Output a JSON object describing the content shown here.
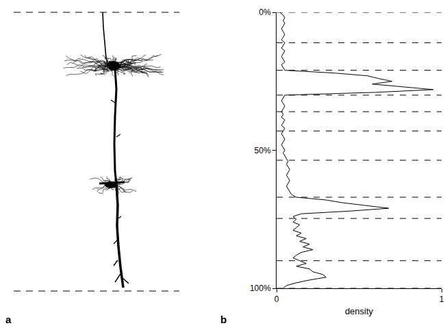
{
  "panel_labels": [
    "a",
    "b"
  ],
  "chart_data": {
    "type": "line",
    "x_label": "density",
    "xlim": [
      0,
      1
    ],
    "xticks": [
      0,
      1
    ],
    "ylim": [
      100,
      0
    ],
    "yticks": [
      {
        "value": 0,
        "label": "0%"
      },
      {
        "value": 50,
        "label": "50%"
      },
      {
        "value": 100,
        "label": "100%"
      }
    ],
    "grid": false,
    "color": "#000000",
    "layer_boundaries": [
      0,
      11,
      21,
      30,
      36,
      43,
      53.6,
      67,
      74.7,
      90,
      100
    ],
    "depth": [
      0,
      1,
      2,
      3,
      4,
      5,
      6,
      7,
      8,
      9,
      10,
      11,
      12,
      13,
      14,
      15,
      16,
      17,
      18,
      19,
      20,
      21,
      22,
      23,
      24,
      25,
      26,
      27,
      28,
      29,
      30,
      31,
      32,
      33,
      34,
      35,
      36,
      37,
      38,
      39,
      40,
      41,
      42,
      43,
      44,
      45,
      46,
      47,
      48,
      49,
      50,
      51,
      52,
      53,
      54,
      55,
      56,
      57,
      58,
      59,
      60,
      61,
      62,
      63,
      64,
      65,
      66,
      67,
      68,
      69,
      70,
      71,
      72,
      73,
      74,
      75,
      76,
      77,
      78,
      79,
      80,
      81,
      82,
      83,
      84,
      85,
      86,
      87,
      88,
      89,
      90,
      91,
      92,
      93,
      94,
      95,
      96,
      97,
      98,
      99,
      100
    ],
    "density": [
      0.02,
      0.04,
      0.05,
      0.04,
      0.05,
      0.04,
      0.03,
      0.04,
      0.05,
      0.04,
      0.03,
      0.05,
      0.04,
      0.03,
      0.05,
      0.04,
      0.03,
      0.04,
      0.05,
      0.03,
      0.04,
      0.05,
      0.35,
      0.55,
      0.62,
      0.7,
      0.58,
      0.75,
      0.95,
      0.6,
      0.05,
      0.04,
      0.03,
      0.04,
      0.05,
      0.04,
      0.03,
      0.04,
      0.03,
      0.05,
      0.04,
      0.03,
      0.05,
      0.04,
      0.03,
      0.04,
      0.05,
      0.04,
      0.03,
      0.04,
      0.05,
      0.04,
      0.05,
      0.06,
      0.07,
      0.06,
      0.07,
      0.08,
      0.07,
      0.06,
      0.07,
      0.08,
      0.07,
      0.06,
      0.07,
      0.08,
      0.09,
      0.12,
      0.3,
      0.4,
      0.55,
      0.68,
      0.45,
      0.15,
      0.1,
      0.12,
      0.1,
      0.14,
      0.12,
      0.1,
      0.15,
      0.12,
      0.18,
      0.14,
      0.2,
      0.16,
      0.22,
      0.15,
      0.12,
      0.1,
      0.14,
      0.18,
      0.12,
      0.2,
      0.22,
      0.28,
      0.3,
      0.2,
      0.12,
      0.06,
      0.04
    ]
  }
}
